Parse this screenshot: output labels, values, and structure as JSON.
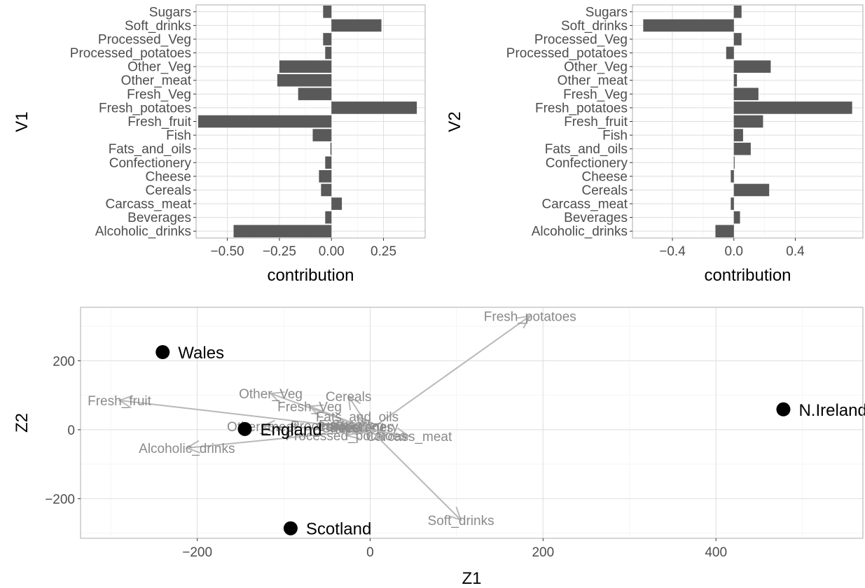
{
  "colors": {
    "bar": "#595959",
    "arrow": "#b8b8b8",
    "arrow_label": "#8a8a8a",
    "point": "#000000",
    "grid": "#dedede",
    "border": "#b3b3b3"
  },
  "chart_data": [
    {
      "type": "bar",
      "orientation": "horizontal",
      "xlabel": "contribution",
      "ylabel": "V1",
      "xlim": [
        -0.65,
        0.45
      ],
      "xticks": [
        {
          "value": -0.5,
          "label": "−0.50"
        },
        {
          "value": -0.25,
          "label": "−0.25"
        },
        {
          "value": 0,
          "label": "0.00"
        },
        {
          "value": 0.25,
          "label": "0.25"
        }
      ],
      "grid": true,
      "categories": [
        "Sugars",
        "Soft_drinks",
        "Processed_Veg",
        "Processed_potatoes",
        "Other_Veg",
        "Other_meat",
        "Fresh_Veg",
        "Fresh_potatoes",
        "Fresh_fruit",
        "Fish",
        "Fats_and_oils",
        "Confectionery",
        "Cheese",
        "Cereals",
        "Carcass_meat",
        "Beverages",
        "Alcoholic_drinks"
      ],
      "values": [
        -0.04,
        0.24,
        -0.04,
        -0.03,
        -0.25,
        -0.26,
        -0.16,
        0.41,
        -0.64,
        -0.09,
        -0.005,
        -0.03,
        -0.06,
        -0.05,
        0.05,
        -0.03,
        -0.47
      ]
    },
    {
      "type": "bar",
      "orientation": "horizontal",
      "xlabel": "contribution",
      "ylabel": "V2",
      "xlim": [
        -0.66,
        0.84
      ],
      "xticks": [
        {
          "value": -0.4,
          "label": "−0.4"
        },
        {
          "value": 0,
          "label": "0.0"
        },
        {
          "value": 0.4,
          "label": "0.4"
        }
      ],
      "grid": true,
      "categories": [
        "Sugars",
        "Soft_drinks",
        "Processed_Veg",
        "Processed_potatoes",
        "Other_Veg",
        "Other_meat",
        "Fresh_Veg",
        "Fresh_potatoes",
        "Fresh_fruit",
        "Fish",
        "Fats_and_oils",
        "Confectionery",
        "Cheese",
        "Cereals",
        "Carcass_meat",
        "Beverages",
        "Alcoholic_drinks"
      ],
      "values": [
        0.05,
        -0.59,
        0.05,
        -0.05,
        0.24,
        0.02,
        0.16,
        0.77,
        0.19,
        0.06,
        0.11,
        0.005,
        -0.02,
        0.23,
        -0.02,
        0.04,
        -0.12
      ]
    },
    {
      "type": "scatter",
      "subtype": "biplot",
      "xlabel": "Z1",
      "ylabel": "Z2",
      "xlim": [
        -335,
        570
      ],
      "ylim": [
        -315,
        355
      ],
      "xticks": [
        {
          "value": -200,
          "label": "−200"
        },
        {
          "value": 0,
          "label": "0"
        },
        {
          "value": 200,
          "label": "200"
        },
        {
          "value": 400,
          "label": "400"
        }
      ],
      "yticks": [
        {
          "value": -200,
          "label": "−200"
        },
        {
          "value": 0,
          "label": "0"
        },
        {
          "value": 200,
          "label": "200"
        }
      ],
      "grid": true,
      "points": [
        {
          "label": "Wales",
          "x": -240,
          "y": 225
        },
        {
          "label": "England",
          "x": -145,
          "y": 2
        },
        {
          "label": "Scotland",
          "x": -92,
          "y": -286
        },
        {
          "label": "N.Ireland",
          "x": 478,
          "y": 59
        }
      ],
      "loadings": [
        {
          "label": "Fresh_potatoes",
          "x": 185,
          "y": 330
        },
        {
          "label": "Fresh_fruit",
          "x": -290,
          "y": 85
        },
        {
          "label": "Alcoholic_drinks",
          "x": -212,
          "y": -53
        },
        {
          "label": "Other_Veg",
          "x": -115,
          "y": 105
        },
        {
          "label": "Other_meat",
          "x": -125,
          "y": 10
        },
        {
          "label": "Fresh_Veg",
          "x": -70,
          "y": 68
        },
        {
          "label": "Cereals",
          "x": -25,
          "y": 97
        },
        {
          "label": "Fats_and_oils",
          "x": -15,
          "y": 38
        },
        {
          "label": "Processed_Veg",
          "x": -38,
          "y": 12
        },
        {
          "label": "Processed_potatoes",
          "x": -28,
          "y": -17
        },
        {
          "label": "Sugars",
          "x": -20,
          "y": 15
        },
        {
          "label": "Fish",
          "x": -45,
          "y": 15
        },
        {
          "label": "Cheese",
          "x": -30,
          "y": 6
        },
        {
          "label": "Confectionery",
          "x": -15,
          "y": 10
        },
        {
          "label": "Beverages",
          "x": -10,
          "y": 8
        },
        {
          "label": "Carcass_meat",
          "x": 45,
          "y": -19
        },
        {
          "label": "Soft_drinks",
          "x": 105,
          "y": -262
        }
      ]
    }
  ]
}
